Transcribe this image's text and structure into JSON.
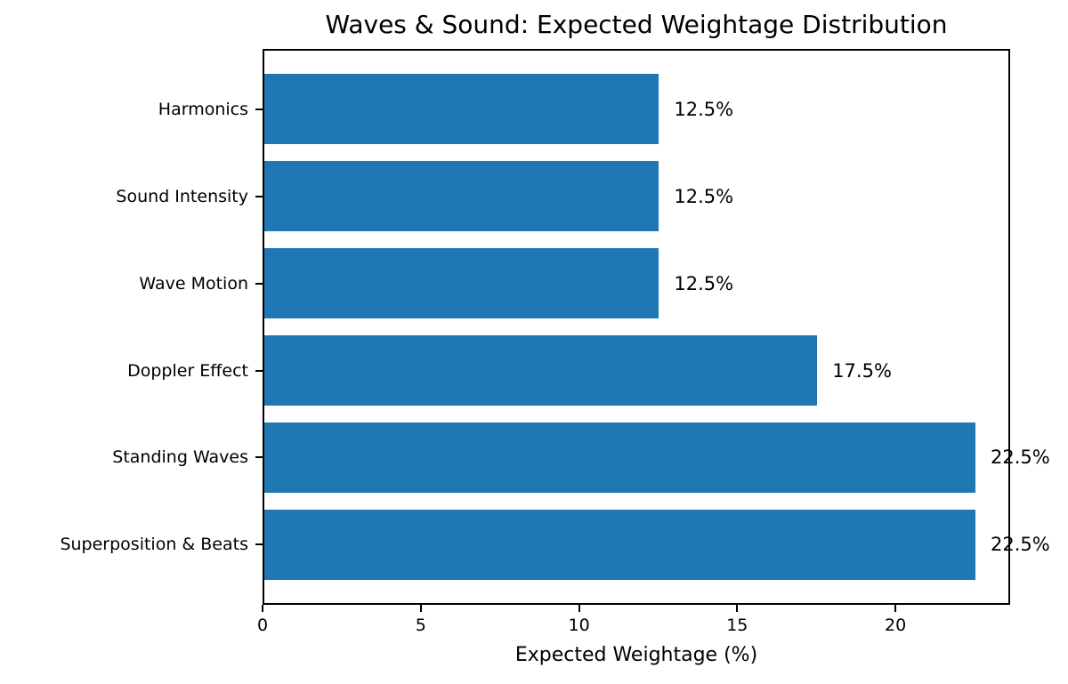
{
  "chart_data": {
    "type": "bar",
    "orientation": "horizontal",
    "title": "Waves & Sound: Expected Weightage Distribution",
    "xlabel": "Expected Weightage (%)",
    "ylabel": "",
    "categories": [
      "Harmonics",
      "Sound Intensity",
      "Wave Motion",
      "Doppler Effect",
      "Standing Waves",
      "Superposition & Beats"
    ],
    "values": [
      12.5,
      12.5,
      12.5,
      17.5,
      22.5,
      22.5
    ],
    "value_labels": [
      "12.5%",
      "12.5%",
      "12.5%",
      "17.5%",
      "22.5%",
      "22.5%"
    ],
    "xticks": [
      0,
      5,
      10,
      15,
      20
    ],
    "xtick_labels": [
      "0",
      "5",
      "10",
      "15",
      "20"
    ],
    "xlim": [
      0,
      23.625
    ],
    "grid": false,
    "legend": null,
    "bar_color": "#1f77b4",
    "text_color": "#000000",
    "background_color": "#ffffff"
  }
}
